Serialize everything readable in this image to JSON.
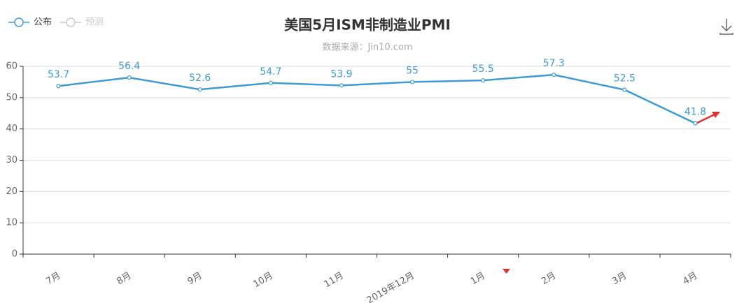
{
  "chart_data": {
    "type": "line",
    "title": "美国5月ISM非制造业PMI",
    "subtitle": "数据来源：Jin10.com",
    "categories": [
      "7月",
      "8月",
      "9月",
      "10月",
      "11月",
      "2019年12月",
      "1月",
      "2月",
      "3月",
      "4月"
    ],
    "series": [
      {
        "name": "公布",
        "color": "#3e9bd4",
        "values": [
          53.7,
          56.4,
          52.6,
          54.7,
          53.9,
          55,
          55.5,
          57.3,
          52.5,
          41.8
        ]
      },
      {
        "name": "预测",
        "color": "#cccccc",
        "values": [
          null,
          null,
          null,
          null,
          null,
          null,
          null,
          null,
          null,
          null
        ]
      }
    ],
    "ylim": [
      0,
      60
    ],
    "yticks": [
      0,
      10,
      20,
      30,
      40,
      50,
      60
    ],
    "grid": true
  }
}
